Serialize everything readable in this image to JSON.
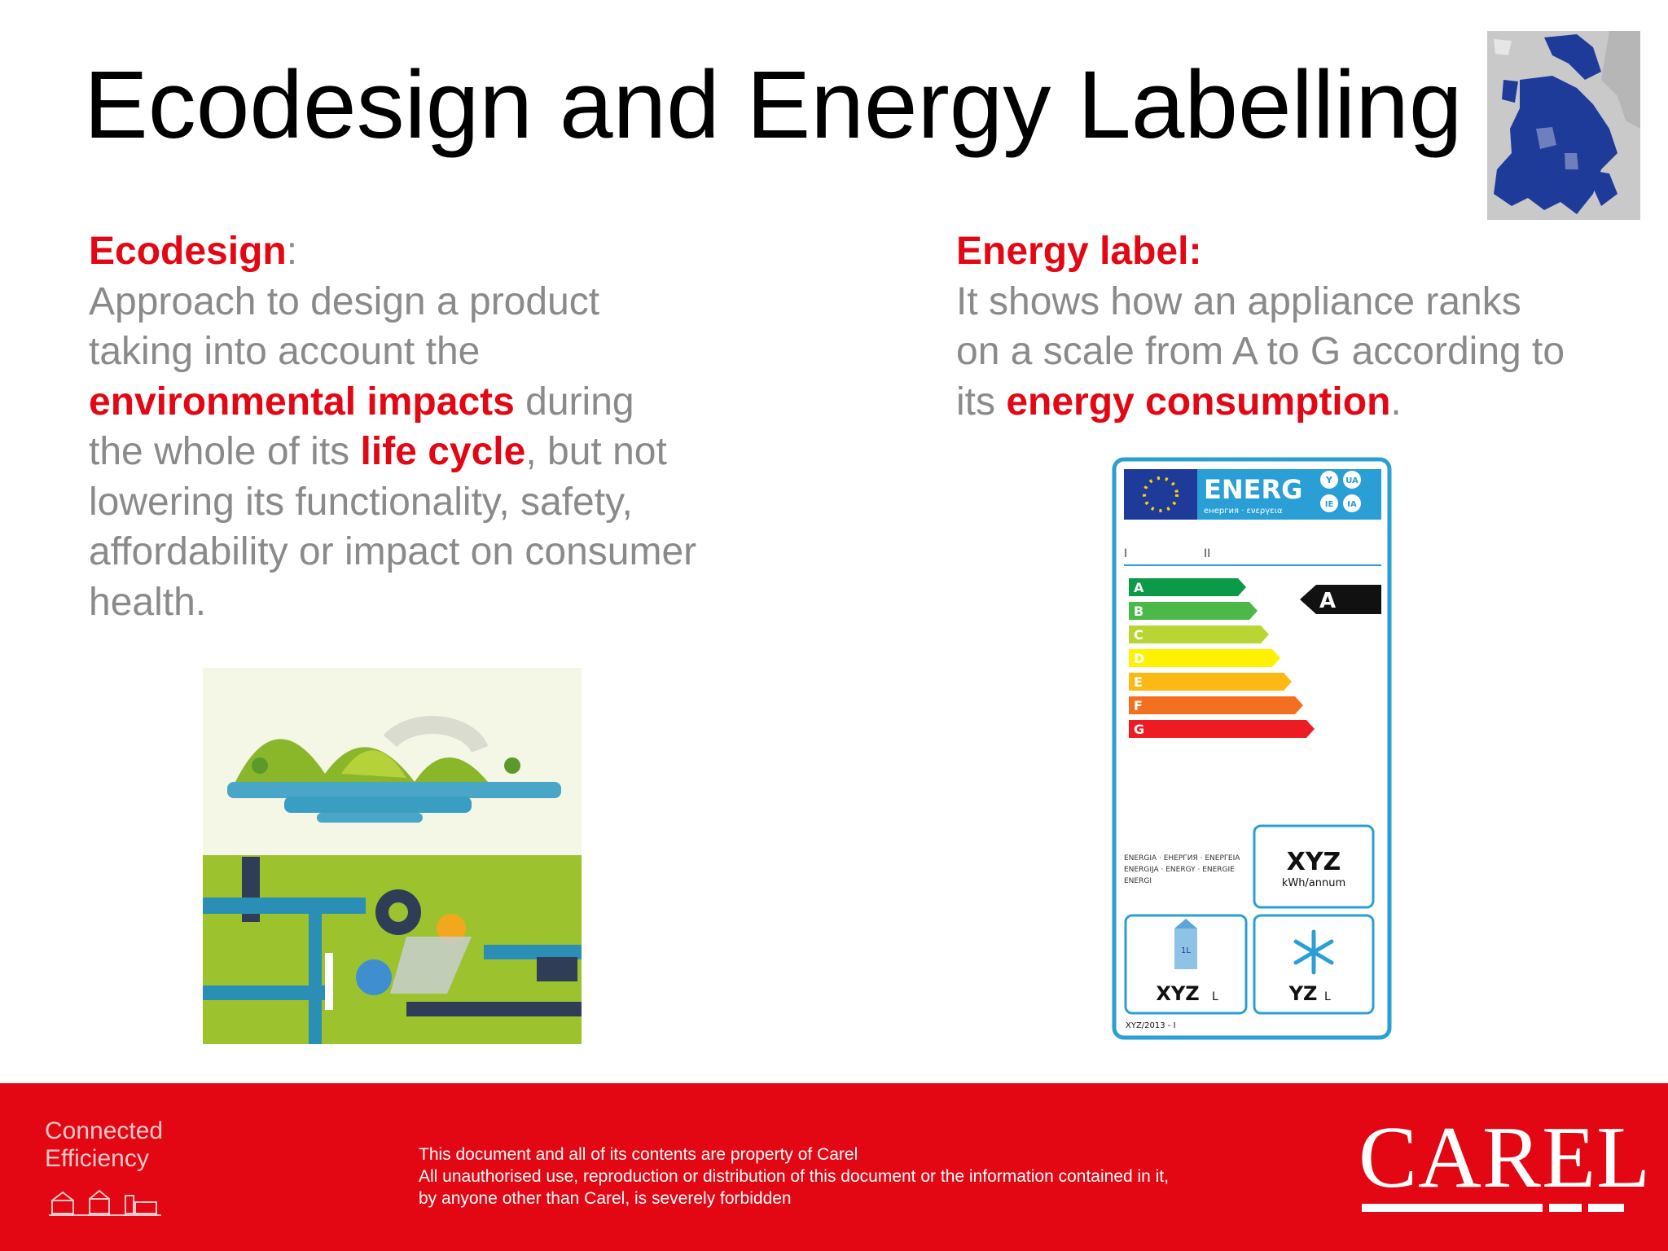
{
  "slide": {
    "title": "Ecodesign and Energy Labelling"
  },
  "ecodesign": {
    "heading": "Ecodesign",
    "heading_colon": ":",
    "l1": "Approach to design a product",
    "l2": "taking into account the",
    "l3_hl": "environmental impacts",
    "l3_rest": " during",
    "l4_pre": "the whole of its ",
    "l4_hl": "life cycle",
    "l4_post": ", but not",
    "l5": "lowering its functionality, safety,",
    "l6": "affordability or impact on consumer",
    "l7": "health."
  },
  "energy_label": {
    "heading": "Energy label:",
    "l1": "It shows how an appliance ranks",
    "l2": "on a scale from A to G according to",
    "l3_pre": "its ",
    "l3_hl": "energy consumption",
    "l3_post": "."
  },
  "label_graphic": {
    "brand": "ENERG",
    "sub": "енергия · ενεργεια",
    "badges": [
      "Y",
      "UA",
      "IE",
      "IA"
    ],
    "row_I": "I",
    "row_II": "II",
    "classes": [
      "A",
      "B",
      "C",
      "D",
      "E",
      "F",
      "G"
    ],
    "class_colors": [
      "#0a9a48",
      "#4cb848",
      "#b9d534",
      "#fff200",
      "#fdb913",
      "#f37021",
      "#ed1c24"
    ],
    "rating": "A",
    "energy_words_1": "ENERGIA · ЕНЕРГИЯ · ЕΝΕΡΓΕΙΑ",
    "energy_words_2": "ENERGIJA · ENERGY · ENERGIE",
    "energy_words_3": "ENERGI",
    "kwh_value": "XYZ",
    "kwh_unit": "kWh/annum",
    "fresh_value": "XYZ",
    "fresh_unit": "L",
    "freeze_value": "YZ",
    "freeze_unit": "L",
    "carton_text": "1L",
    "regulation": "XYZ/2013 - I"
  },
  "footer": {
    "tagline_1": "Connected",
    "tagline_2": "Efficiency",
    "legal_1": "This document and all of its contents are property of Carel",
    "legal_2": "All unauthorised use, reproduction or distribution of this document or the information contained in it,",
    "legal_3": "by anyone other than Carel, is severely forbidden",
    "logo": "CAREL"
  },
  "colors": {
    "accent_red": "#e30613",
    "body_gray": "#8a8a8a",
    "label_frame": "#2a9fd6",
    "eu_blue": "#1f3b9a"
  }
}
